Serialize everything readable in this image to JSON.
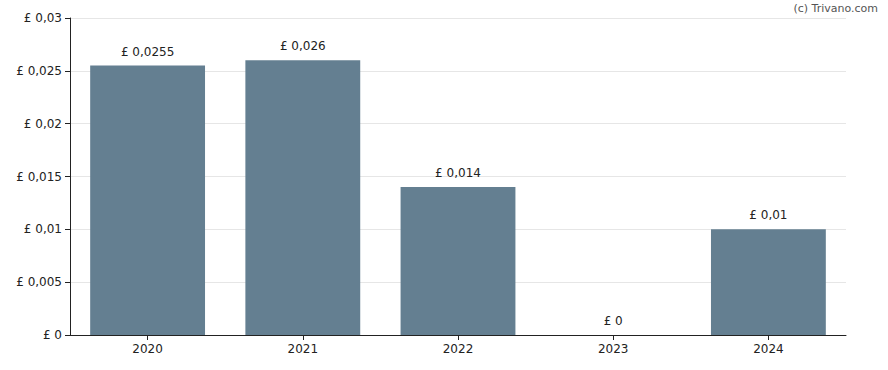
{
  "chart_data": {
    "type": "bar",
    "annotations": [
      "(c) Trivano.com"
    ],
    "categories": [
      "2020",
      "2021",
      "2022",
      "2023",
      "2024"
    ],
    "values": [
      0.0255,
      0.026,
      0.014,
      0,
      0.01
    ],
    "value_labels": [
      "£ 0,0255",
      "£ 0,026",
      "£ 0,014",
      "£ 0",
      "£ 0,01"
    ],
    "data_labels": true,
    "color": "#647f91",
    "ylim": [
      0,
      0.03
    ],
    "yticks": [
      {
        "value": 0,
        "label": "£ 0"
      },
      {
        "value": 0.005,
        "label": "£ 0,005"
      },
      {
        "value": 0.01,
        "label": "£ 0,01"
      },
      {
        "value": 0.015,
        "label": "£ 0,015"
      },
      {
        "value": 0.02,
        "label": "£ 0,02"
      },
      {
        "value": 0.025,
        "label": "£ 0,025"
      },
      {
        "value": 0.03,
        "label": "£ 0,03"
      }
    ],
    "grid": true
  }
}
